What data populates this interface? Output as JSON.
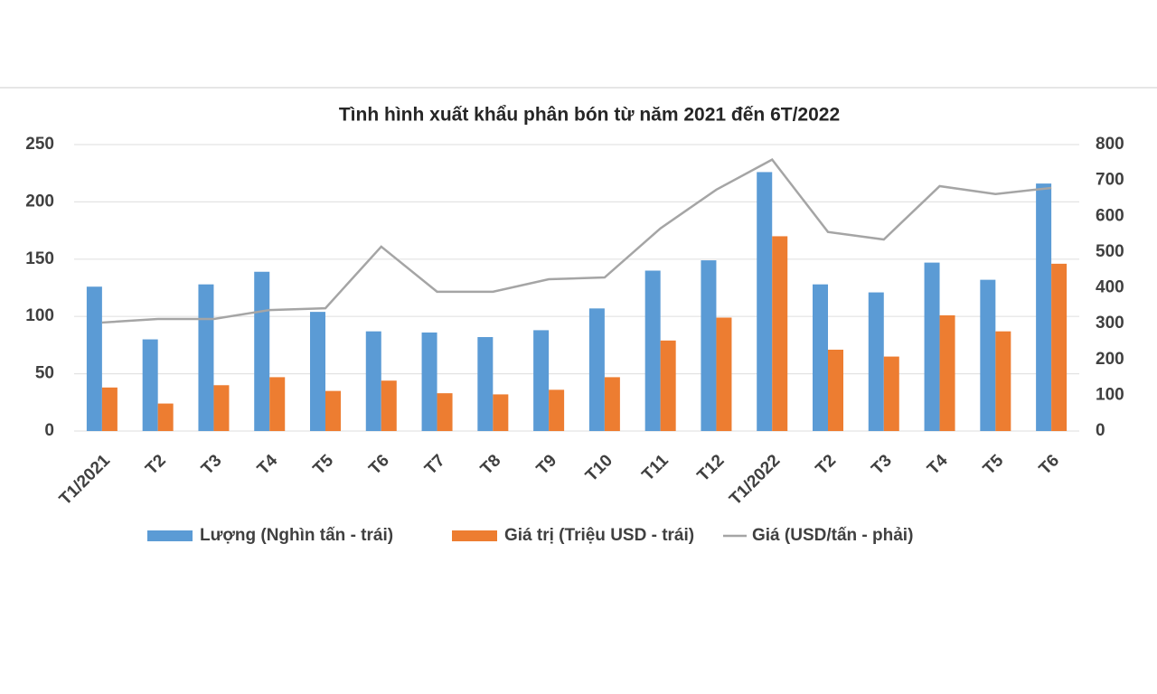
{
  "chart_data": {
    "type": "bar-line",
    "title": "Tình hình xuất khẩu phân bón từ năm 2021 đến 6T/2022",
    "categories": [
      "T1/2021",
      "T2",
      "T3",
      "T4",
      "T5",
      "T6",
      "T7",
      "T8",
      "T9",
      "T10",
      "T11",
      "T12",
      "T1/2022",
      "T2",
      "T3",
      "T4",
      "T5",
      "T6"
    ],
    "series": [
      {
        "name": "Lượng (Nghìn tấn - trái)",
        "type": "bar",
        "color": "#5b9bd5",
        "values": [
          126,
          80,
          128,
          139,
          104,
          87,
          86,
          82,
          88,
          107,
          140,
          149,
          226,
          128,
          121,
          147,
          132,
          216
        ]
      },
      {
        "name": "Giá trị (Triệu USD - trái)",
        "type": "bar",
        "color": "#ed7d31",
        "values": [
          38,
          24,
          40,
          47,
          35,
          44,
          33,
          32,
          36,
          47,
          79,
          99,
          170,
          71,
          65,
          101,
          87,
          146
        ]
      },
      {
        "name": "Giá (USD/tấn - phải)",
        "type": "line",
        "axis": "y2",
        "color": "#a5a5a5",
        "values": [
          303,
          313,
          313,
          338,
          343,
          515,
          389,
          389,
          424,
          429,
          566,
          674,
          758,
          556,
          535,
          684,
          662,
          679
        ]
      }
    ],
    "ylim": [
      0,
      250
    ],
    "yticks": [
      0,
      50,
      100,
      150,
      200,
      250
    ],
    "y2lim": [
      0,
      800
    ],
    "y2ticks": [
      0,
      100,
      200,
      300,
      400,
      500,
      600,
      700,
      800
    ],
    "grid": true,
    "legend": "bottom"
  }
}
